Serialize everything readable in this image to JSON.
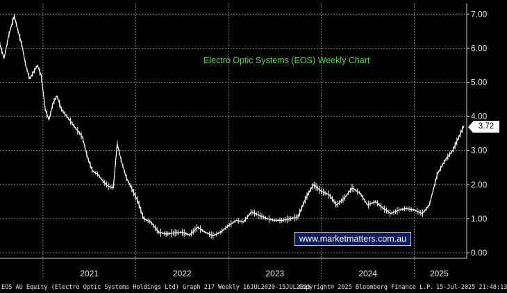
{
  "chart_data": {
    "type": "line",
    "title": "Electro Optic Systems (EOS) Weekly Chart",
    "xlabel": "",
    "ylabel": "",
    "x_tick_labels": [
      "2021",
      "2022",
      "2023",
      "2024",
      "2025"
    ],
    "y_tick_labels": [
      "0.00",
      "1.00",
      "2.00",
      "3.00",
      "4.00",
      "5.00",
      "6.00",
      "7.00"
    ],
    "ylim": [
      -0.1,
      7.1
    ],
    "xlim": [
      "2020-07-16",
      "2025-07-15"
    ],
    "grid": true,
    "y_axis_side": "right",
    "last_value": "3.72",
    "series": [
      {
        "values": [
          [
            "2020-07-16",
            6.1
          ],
          [
            "2020-08-01",
            5.7
          ],
          [
            "2020-08-20",
            6.4
          ],
          [
            "2020-09-10",
            6.95
          ],
          [
            "2020-09-25",
            6.5
          ],
          [
            "2020-10-10",
            6.1
          ],
          [
            "2020-10-25",
            5.5
          ],
          [
            "2020-11-10",
            5.1
          ],
          [
            "2020-11-25",
            5.3
          ],
          [
            "2020-12-10",
            5.5
          ],
          [
            "2020-12-25",
            5.2
          ],
          [
            "2021-01-10",
            4.2
          ],
          [
            "2021-01-25",
            3.9
          ],
          [
            "2021-02-10",
            4.4
          ],
          [
            "2021-02-25",
            4.6
          ],
          [
            "2021-03-15",
            4.2
          ],
          [
            "2021-04-05",
            4.0
          ],
          [
            "2021-04-25",
            3.8
          ],
          [
            "2021-05-15",
            3.6
          ],
          [
            "2021-06-05",
            3.4
          ],
          [
            "2021-06-25",
            2.8
          ],
          [
            "2021-07-15",
            2.4
          ],
          [
            "2021-08-05",
            2.3
          ],
          [
            "2021-08-25",
            2.1
          ],
          [
            "2021-09-15",
            1.95
          ],
          [
            "2021-10-05",
            1.9
          ],
          [
            "2021-10-20",
            3.2
          ],
          [
            "2021-11-05",
            2.7
          ],
          [
            "2021-11-25",
            2.2
          ],
          [
            "2021-12-15",
            1.9
          ],
          [
            "2022-01-10",
            1.5
          ],
          [
            "2022-02-01",
            1.0
          ],
          [
            "2022-03-01",
            0.9
          ],
          [
            "2022-04-01",
            0.6
          ],
          [
            "2022-05-01",
            0.55
          ],
          [
            "2022-06-01",
            0.58
          ],
          [
            "2022-07-01",
            0.6
          ],
          [
            "2022-08-01",
            0.52
          ],
          [
            "2022-09-01",
            0.75
          ],
          [
            "2022-10-01",
            0.6
          ],
          [
            "2022-11-01",
            0.5
          ],
          [
            "2022-12-01",
            0.6
          ],
          [
            "2023-01-01",
            0.8
          ],
          [
            "2023-02-01",
            0.95
          ],
          [
            "2023-03-01",
            0.9
          ],
          [
            "2023-04-01",
            1.2
          ],
          [
            "2023-05-01",
            1.1
          ],
          [
            "2023-06-01",
            1.0
          ],
          [
            "2023-07-01",
            0.95
          ],
          [
            "2023-08-01",
            0.95
          ],
          [
            "2023-09-01",
            1.0
          ],
          [
            "2023-10-01",
            1.05
          ],
          [
            "2023-11-01",
            1.6
          ],
          [
            "2023-12-01",
            2.0
          ],
          [
            "2024-01-01",
            1.8
          ],
          [
            "2024-02-01",
            1.7
          ],
          [
            "2024-03-01",
            1.4
          ],
          [
            "2024-04-01",
            1.6
          ],
          [
            "2024-05-01",
            1.9
          ],
          [
            "2024-06-01",
            1.75
          ],
          [
            "2024-07-01",
            1.4
          ],
          [
            "2024-08-01",
            1.5
          ],
          [
            "2024-09-01",
            1.3
          ],
          [
            "2024-10-01",
            1.15
          ],
          [
            "2024-11-01",
            1.25
          ],
          [
            "2024-12-01",
            1.3
          ],
          [
            "2025-01-01",
            1.25
          ],
          [
            "2025-02-01",
            1.15
          ],
          [
            "2025-03-01",
            1.4
          ],
          [
            "2025-04-01",
            2.3
          ],
          [
            "2025-05-01",
            2.7
          ],
          [
            "2025-06-01",
            3.0
          ],
          [
            "2025-07-15",
            3.72
          ]
        ]
      }
    ]
  },
  "watermark": "www.marketmatters.com.au",
  "footer": {
    "left": "EOS AU Equity (Electro Optic Systems Holdings Ltd) Graph 217  Weekly 16JUL2020-15JUL2025",
    "middle": "Copyright® 2025 Bloomberg Finance L.P.",
    "right": "15-Jul-2025 21:48:13"
  },
  "colors": {
    "background": "#000000",
    "price": "#ffffff",
    "grid": "#9a9a9a",
    "title": "#5cd34b",
    "watermark_bg": "#0b1c5a"
  }
}
